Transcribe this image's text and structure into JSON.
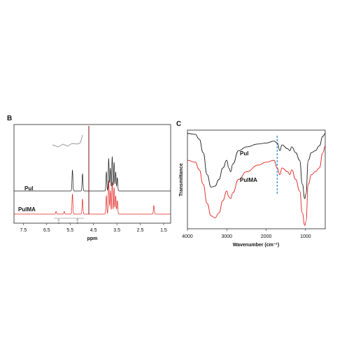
{
  "chart_data": [
    {
      "panel": "B",
      "type": "line",
      "xlabel": "ppm",
      "x_ticks": [
        "7.5",
        "6.5",
        "5.5",
        "4.5",
        "3.5",
        "2.5",
        "1.5"
      ],
      "x_tick_values": [
        7.5,
        6.5,
        5.5,
        4.5,
        3.5,
        2.5,
        1.5
      ],
      "xlim": [
        7.9,
        1.2
      ],
      "x_reversed": true,
      "series": [
        {
          "name": "Pul",
          "color": "#1a1a1a",
          "peaks": [
            [
              5.4,
              0.55
            ],
            [
              4.97,
              0.45
            ],
            [
              3.95,
              0.5
            ],
            [
              3.85,
              0.85
            ],
            [
              3.78,
              0.6
            ],
            [
              3.7,
              0.9
            ],
            [
              3.62,
              0.75
            ],
            [
              3.55,
              0.5
            ],
            [
              3.48,
              0.35
            ]
          ]
        },
        {
          "name": "PulMA",
          "color": "#e0231f",
          "peaks": [
            [
              6.1,
              0.08
            ],
            [
              5.75,
              0.08
            ],
            [
              5.4,
              0.6
            ],
            [
              4.97,
              0.45
            ],
            [
              3.95,
              0.55
            ],
            [
              3.85,
              1.0
            ],
            [
              3.78,
              0.7
            ],
            [
              3.7,
              0.95
            ],
            [
              3.62,
              0.8
            ],
            [
              3.55,
              0.55
            ],
            [
              3.48,
              0.4
            ],
            [
              1.92,
              0.25
            ]
          ]
        }
      ],
      "integration_labels": [
        "0.11",
        "0.06"
      ],
      "solvent_peak_ppm": 4.7
    },
    {
      "panel": "C",
      "type": "line",
      "xlabel": "Wavenumber (cm⁻¹)",
      "ylabel": "Transmittance",
      "x_ticks": [
        "4000",
        "3000",
        "2000",
        "1000"
      ],
      "x_tick_values": [
        4000,
        3000,
        2000,
        1000
      ],
      "xlim": [
        4000,
        500
      ],
      "x_reversed": true,
      "marker_line_wavenumber": 1720,
      "series": [
        {
          "name": "Pul",
          "color": "#1a1a1a",
          "points": [
            [
              4000,
              0.98
            ],
            [
              3800,
              0.97
            ],
            [
              3700,
              0.92
            ],
            [
              3600,
              0.78
            ],
            [
              3500,
              0.55
            ],
            [
              3400,
              0.42
            ],
            [
              3300,
              0.43
            ],
            [
              3200,
              0.5
            ],
            [
              3100,
              0.62
            ],
            [
              3000,
              0.7
            ],
            [
              2950,
              0.62
            ],
            [
              2900,
              0.58
            ],
            [
              2850,
              0.66
            ],
            [
              2700,
              0.8
            ],
            [
              2500,
              0.84
            ],
            [
              2200,
              0.87
            ],
            [
              2000,
              0.88
            ],
            [
              1800,
              0.9
            ],
            [
              1720,
              0.88
            ],
            [
              1650,
              0.8
            ],
            [
              1600,
              0.86
            ],
            [
              1450,
              0.82
            ],
            [
              1400,
              0.8
            ],
            [
              1350,
              0.84
            ],
            [
              1250,
              0.78
            ],
            [
              1150,
              0.7
            ],
            [
              1080,
              0.45
            ],
            [
              1020,
              0.3
            ],
            [
              990,
              0.35
            ],
            [
              930,
              0.7
            ],
            [
              850,
              0.78
            ],
            [
              750,
              0.8
            ],
            [
              650,
              0.85
            ],
            [
              560,
              0.95
            ],
            [
              500,
              0.98
            ]
          ]
        },
        {
          "name": "PulMA",
          "color": "#e0231f",
          "points": [
            [
              4000,
              0.7
            ],
            [
              3800,
              0.68
            ],
            [
              3700,
              0.6
            ],
            [
              3600,
              0.45
            ],
            [
              3500,
              0.25
            ],
            [
              3400,
              0.12
            ],
            [
              3300,
              0.1
            ],
            [
              3200,
              0.15
            ],
            [
              3100,
              0.28
            ],
            [
              3000,
              0.38
            ],
            [
              2950,
              0.32
            ],
            [
              2900,
              0.3
            ],
            [
              2850,
              0.36
            ],
            [
              2700,
              0.5
            ],
            [
              2500,
              0.58
            ],
            [
              2200,
              0.65
            ],
            [
              2000,
              0.68
            ],
            [
              1800,
              0.7
            ],
            [
              1720,
              0.62
            ],
            [
              1650,
              0.55
            ],
            [
              1600,
              0.62
            ],
            [
              1450,
              0.58
            ],
            [
              1400,
              0.55
            ],
            [
              1350,
              0.6
            ],
            [
              1250,
              0.5
            ],
            [
              1150,
              0.38
            ],
            [
              1080,
              0.15
            ],
            [
              1020,
              0.02
            ],
            [
              990,
              0.06
            ],
            [
              930,
              0.45
            ],
            [
              850,
              0.55
            ],
            [
              750,
              0.58
            ],
            [
              650,
              0.62
            ],
            [
              560,
              0.78
            ],
            [
              500,
              0.85
            ]
          ]
        }
      ]
    }
  ]
}
